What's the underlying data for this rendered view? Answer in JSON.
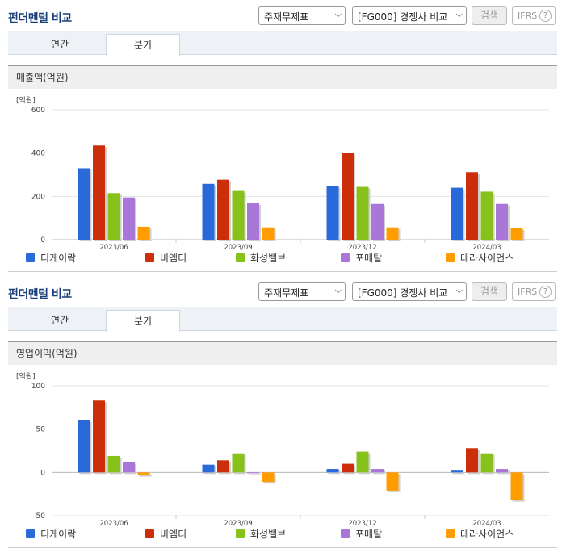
{
  "header": {
    "title": "펀더멘털 비교",
    "select_statement": "주재무제표",
    "select_peer": "[FG000] 경쟁사 비교",
    "search_label": "검색",
    "ifrs_label": "IFRS",
    "help_glyph": "?"
  },
  "tabs": [
    {
      "label": "연간",
      "active": false
    },
    {
      "label": "분기",
      "active": true
    }
  ],
  "colors": {
    "series": [
      "#2969d9",
      "#cc2e0a",
      "#86c21a",
      "#a977d8",
      "#ff9d00"
    ]
  },
  "chart_data": [
    {
      "type": "bar",
      "title": "매출액(억원)",
      "unit_label": "[억원]",
      "categories": [
        "2023/06",
        "2023/09",
        "2023/12",
        "2024/03"
      ],
      "ylim": [
        0,
        600
      ],
      "yticks": [
        0,
        200,
        400,
        600
      ],
      "grid": true,
      "legend_position": "bottom",
      "series": [
        {
          "name": "디케이락",
          "values": [
            330,
            258,
            248,
            240
          ]
        },
        {
          "name": "비엠티",
          "values": [
            435,
            277,
            402,
            312
          ]
        },
        {
          "name": "화성밸브",
          "values": [
            215,
            225,
            244,
            222
          ]
        },
        {
          "name": "포메탈",
          "values": [
            195,
            168,
            165,
            165
          ]
        },
        {
          "name": "테라사이언스",
          "values": [
            60,
            57,
            57,
            53
          ]
        }
      ]
    },
    {
      "type": "bar",
      "title": "영업이익(억원)",
      "unit_label": "[억원]",
      "categories": [
        "2023/06",
        "2023/09",
        "2023/12",
        "2024/03"
      ],
      "ylim": [
        -50,
        100
      ],
      "yticks": [
        -50,
        0,
        50,
        100
      ],
      "grid": true,
      "legend_position": "bottom",
      "series": [
        {
          "name": "디케이락",
          "values": [
            60,
            9,
            4,
            2
          ]
        },
        {
          "name": "비엠티",
          "values": [
            83,
            14,
            10,
            28
          ]
        },
        {
          "name": "화성밸브",
          "values": [
            19,
            22,
            24,
            22
          ]
        },
        {
          "name": "포메탈",
          "values": [
            12,
            -1,
            4,
            4
          ]
        },
        {
          "name": "테라사이언스",
          "values": [
            -3,
            -11,
            -21,
            -32
          ]
        }
      ]
    }
  ]
}
